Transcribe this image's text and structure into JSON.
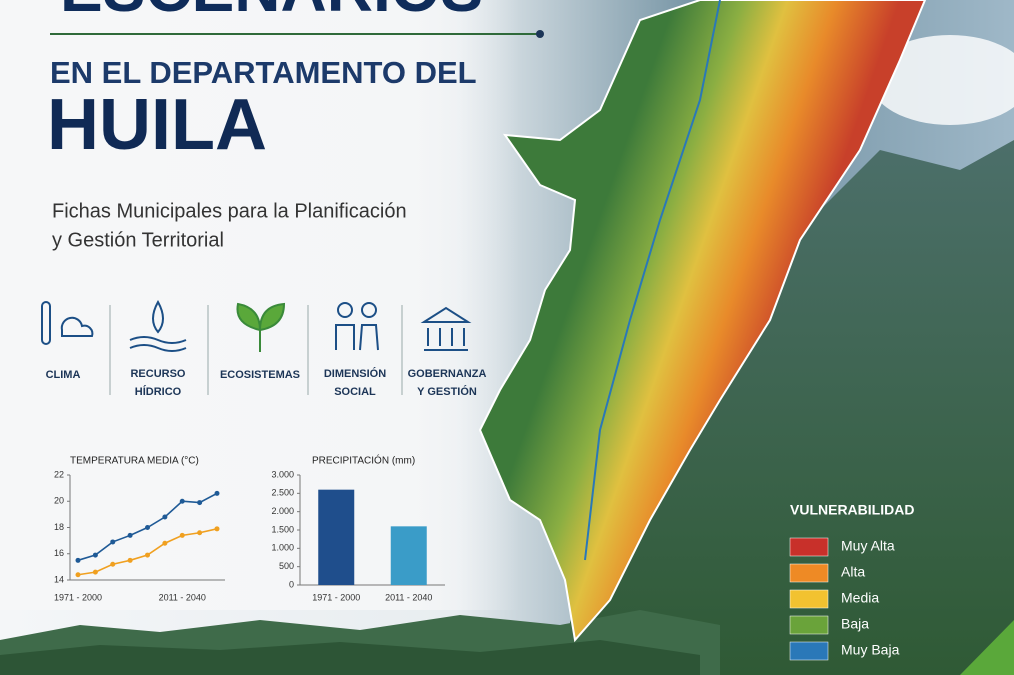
{
  "header": {
    "title_top": "ESCENARIOS",
    "title_line": "EN EL DEPARTAMENTO DEL",
    "title_main": "HUILA",
    "subtitle_1": "Fichas Municipales para la Planificación",
    "subtitle_2": "y Gestión Territorial"
  },
  "themes": [
    {
      "label_1": "CLIMA"
    },
    {
      "label_1": "RECURSO",
      "label_2": "HÍDRICO"
    },
    {
      "label_1": "ECOSISTEMAS"
    },
    {
      "label_1": "DIMENSIÓN",
      "label_2": "SOCIAL"
    },
    {
      "label_1": "GOBERNANZA",
      "label_2": "Y GESTIÓN"
    }
  ],
  "chart_data": [
    {
      "type": "line",
      "title": "TEMPERATURA MEDIA (°C)",
      "categories": [
        "1971 - 2000",
        null,
        null,
        null,
        null,
        null,
        "2011 - 2040",
        null,
        null
      ],
      "series": [
        {
          "color": "#1f5a96",
          "values": [
            15.5,
            15.9,
            16.9,
            17.4,
            18.0,
            18.8,
            20.0,
            19.9,
            20.6
          ]
        },
        {
          "color": "#f0a020",
          "values": [
            14.4,
            14.6,
            15.2,
            15.5,
            15.9,
            16.8,
            17.4,
            17.6,
            17.9
          ]
        }
      ],
      "ylim": [
        14,
        22
      ],
      "yticks": [
        14,
        16,
        18,
        20,
        22
      ]
    },
    {
      "type": "bar",
      "title": "PRECIPITACIÓN (mm)",
      "categories": [
        "1971 - 2000",
        "2011 - 2040"
      ],
      "values": [
        2600,
        1600
      ],
      "colors": [
        "#1f4e8c",
        "#3a9cc8"
      ],
      "ylim": [
        0,
        3000
      ],
      "yticks": [
        0,
        {
          "value": 500,
          "label": "500"
        },
        {
          "value": 1000,
          "label": "1.000"
        },
        {
          "value": 1500,
          "label": "1.500"
        },
        {
          "value": 2000,
          "label": "2.000"
        },
        {
          "value": 2500,
          "label": "2.500"
        },
        {
          "value": 3000,
          "label": "3.000"
        }
      ]
    }
  ],
  "legend": {
    "title": "VULNERABILIDAD",
    "items": [
      {
        "name": "Muy Alta",
        "color": "#c8302a"
      },
      {
        "name": "Alta",
        "color": "#ee8a25"
      },
      {
        "name": "Media",
        "color": "#f2c230"
      },
      {
        "name": "Baja",
        "color": "#6aa33a"
      },
      {
        "name": "Muy Baja",
        "color": "#2a78b8"
      }
    ]
  }
}
